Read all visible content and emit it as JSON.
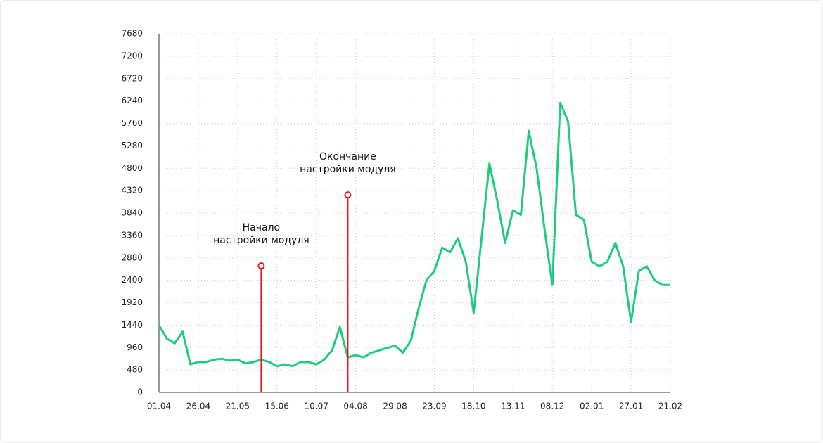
{
  "chart_data": {
    "type": "line",
    "categories": [
      "01.04",
      null,
      null,
      null,
      null,
      "26.04",
      null,
      null,
      null,
      null,
      "21.05",
      null,
      null,
      null,
      null,
      "15.06",
      null,
      null,
      null,
      null,
      "10.07",
      null,
      null,
      null,
      null,
      "04.08",
      null,
      null,
      null,
      null,
      "29.08",
      null,
      null,
      null,
      null,
      "23.09",
      null,
      null,
      null,
      null,
      "18.10",
      null,
      null,
      null,
      null,
      "13.11",
      null,
      null,
      null,
      null,
      "08.12",
      null,
      null,
      null,
      null,
      "02.01",
      null,
      null,
      null,
      null,
      "27.01",
      null,
      null,
      null,
      null,
      "21.02"
    ],
    "values": [
      1440,
      1150,
      1050,
      1300,
      600,
      650,
      650,
      700,
      720,
      680,
      700,
      620,
      650,
      700,
      650,
      560,
      600,
      560,
      650,
      650,
      600,
      700,
      900,
      1400,
      750,
      800,
      750,
      850,
      900,
      950,
      1000,
      850,
      1100,
      1800,
      2400,
      2600,
      3100,
      3000,
      3300,
      2800,
      1700,
      3300,
      4900,
      4100,
      3200,
      3900,
      3800,
      5600,
      4800,
      3500,
      2300,
      6200,
      5800,
      3800,
      3700,
      2800,
      2700,
      2800,
      3200,
      2700,
      1500,
      2600,
      2700,
      2400,
      2300,
      2300
    ],
    "color": "#1fcc7d",
    "ylim": [
      0,
      7680
    ],
    "yticks": [
      0,
      480,
      960,
      1440,
      1920,
      2400,
      2880,
      3360,
      3840,
      4320,
      4800,
      5280,
      5760,
      6240,
      6720,
      7200,
      7680
    ],
    "grid": true,
    "annotations": [
      {
        "lines": [
          "Начало",
          "настройки модуля"
        ],
        "category_index": 13,
        "y": 2710,
        "color": "#e0191e"
      },
      {
        "lines": [
          "Окончание",
          "настройки модуля"
        ],
        "category_index": 24,
        "y": 4230,
        "color": "#e0191e"
      }
    ]
  }
}
